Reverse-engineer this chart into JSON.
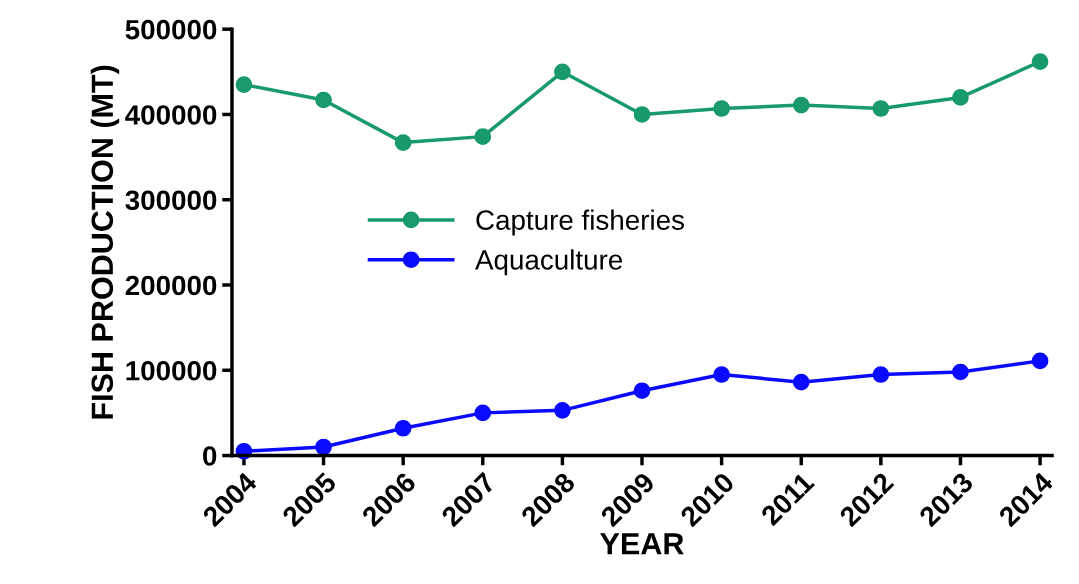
{
  "chart_data": {
    "type": "line",
    "xlabel": "YEAR",
    "ylabel": "FISH PRODUCTION (MT)",
    "categories": [
      "2004",
      "2005",
      "2006",
      "2007",
      "2008",
      "2009",
      "2010",
      "2011",
      "2012",
      "2013",
      "2014"
    ],
    "series": [
      {
        "name": "Capture fisheries",
        "color": "#189a6b",
        "values": [
          435000,
          417000,
          367000,
          374000,
          450000,
          400000,
          407000,
          411000,
          407000,
          420000,
          462000
        ]
      },
      {
        "name": "Aquaculture",
        "color": "#0a0aff",
        "values": [
          5000,
          10000,
          32000,
          50000,
          53000,
          76000,
          95000,
          86000,
          95000,
          98000,
          111000
        ]
      }
    ],
    "ylim": [
      0,
      500000
    ],
    "yticks": [
      0,
      100000,
      200000,
      300000,
      400000,
      500000
    ],
    "grid": false,
    "legend": "center",
    "marker": "circle",
    "line_style": "solid"
  }
}
